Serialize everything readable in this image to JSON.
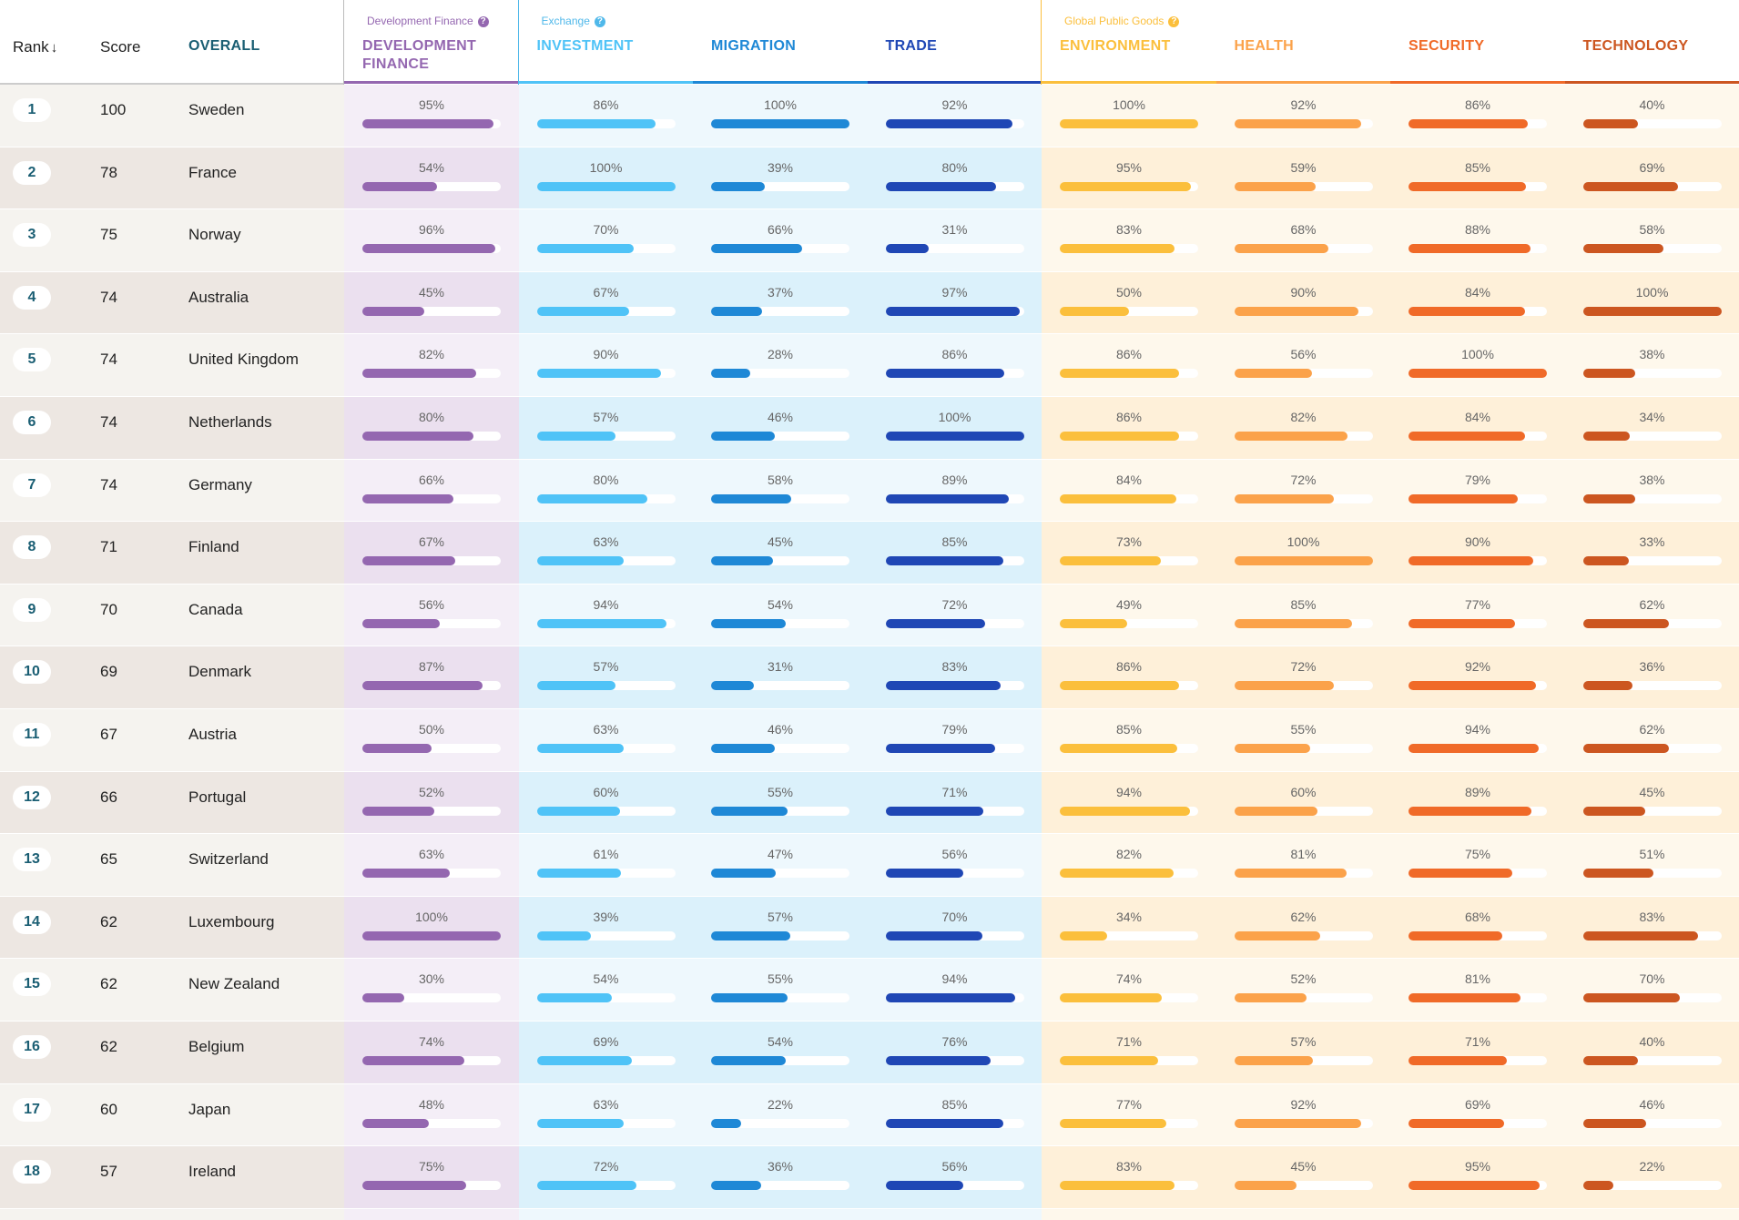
{
  "header": {
    "rank": "Rank",
    "score": "Score",
    "overall": "OVERALL",
    "groups": [
      {
        "label": "Development Finance",
        "color": "#9467b0",
        "columns": [
          {
            "name": "DEVELOPMENT FINANCE",
            "color": "#9467b0"
          }
        ]
      },
      {
        "label": "Exchange",
        "color": "#4fb8ea",
        "columns": [
          {
            "name": "INVESTMENT",
            "color": "#4fc3f7"
          },
          {
            "name": "MIGRATION",
            "color": "#1e88d6"
          },
          {
            "name": "TRADE",
            "color": "#1f47b5"
          }
        ]
      },
      {
        "label": "Global Public Goods",
        "color": "#fbbf3c",
        "columns": [
          {
            "name": "ENVIRONMENT",
            "color": "#fbbf3c"
          },
          {
            "name": "HEALTH",
            "color": "#fba24a"
          },
          {
            "name": "SECURITY",
            "color": "#f06a28"
          },
          {
            "name": "TECHNOLOGY",
            "color": "#cc5620"
          }
        ]
      }
    ]
  },
  "rows": [
    {
      "rank": 1,
      "score": 100,
      "country": "Sweden",
      "values": [
        95,
        86,
        100,
        92,
        100,
        92,
        86,
        40
      ],
      "value_labels": [
        "95%",
        "86%",
        "100%",
        "92%",
        "100%",
        "92%",
        "86%",
        "40%"
      ]
    },
    {
      "rank": 2,
      "score": 78,
      "country": "France",
      "values": [
        54,
        100,
        39,
        80,
        95,
        59,
        85,
        69
      ],
      "value_labels": [
        "54%",
        "100%",
        "39%",
        "80%",
        "95%",
        "59%",
        "85%",
        "69%"
      ]
    },
    {
      "rank": 3,
      "score": 75,
      "country": "Norway",
      "values": [
        96,
        70,
        66,
        31,
        83,
        68,
        88,
        58
      ],
      "value_labels": [
        "96%",
        "70%",
        "66%",
        "31%",
        "83%",
        "68%",
        "88%",
        "58%"
      ]
    },
    {
      "rank": 4,
      "score": 74,
      "country": "Australia",
      "values": [
        45,
        67,
        37,
        97,
        50,
        90,
        84,
        100
      ],
      "value_labels": [
        "45%",
        "67%",
        "37%",
        "97%",
        "50%",
        "90%",
        "84%",
        "100%"
      ]
    },
    {
      "rank": 5,
      "score": 74,
      "country": "United Kingdom",
      "values": [
        82,
        90,
        28,
        86,
        86,
        56,
        100,
        38
      ],
      "value_labels": [
        "82%",
        "90%",
        "28%",
        "86%",
        "86%",
        "56%",
        "100%",
        "38%"
      ]
    },
    {
      "rank": 6,
      "score": 74,
      "country": "Netherlands",
      "values": [
        80,
        57,
        46,
        100,
        86,
        82,
        84,
        34
      ],
      "value_labels": [
        "80%",
        "57%",
        "46%",
        "100%",
        "86%",
        "82%",
        "84%",
        "34%"
      ]
    },
    {
      "rank": 7,
      "score": 74,
      "country": "Germany",
      "values": [
        66,
        80,
        58,
        89,
        84,
        72,
        79,
        38
      ],
      "value_labels": [
        "66%",
        "80%",
        "58%",
        "89%",
        "84%",
        "72%",
        "79%",
        "38%"
      ]
    },
    {
      "rank": 8,
      "score": 71,
      "country": "Finland",
      "values": [
        67,
        63,
        45,
        85,
        73,
        100,
        90,
        33
      ],
      "value_labels": [
        "67%",
        "63%",
        "45%",
        "85%",
        "73%",
        "100%",
        "90%",
        "33%"
      ]
    },
    {
      "rank": 9,
      "score": 70,
      "country": "Canada",
      "values": [
        56,
        94,
        54,
        72,
        49,
        85,
        77,
        62
      ],
      "value_labels": [
        "56%",
        "94%",
        "54%",
        "72%",
        "49%",
        "85%",
        "77%",
        "62%"
      ]
    },
    {
      "rank": 10,
      "score": 69,
      "country": "Denmark",
      "values": [
        87,
        57,
        31,
        83,
        86,
        72,
        92,
        36
      ],
      "value_labels": [
        "87%",
        "57%",
        "31%",
        "83%",
        "86%",
        "72%",
        "92%",
        "36%"
      ]
    },
    {
      "rank": 11,
      "score": 67,
      "country": "Austria",
      "values": [
        50,
        63,
        46,
        79,
        85,
        55,
        94,
        62
      ],
      "value_labels": [
        "50%",
        "63%",
        "46%",
        "79%",
        "85%",
        "55%",
        "94%",
        "62%"
      ]
    },
    {
      "rank": 12,
      "score": 66,
      "country": "Portugal",
      "values": [
        52,
        60,
        55,
        71,
        94,
        60,
        89,
        45
      ],
      "value_labels": [
        "52%",
        "60%",
        "55%",
        "71%",
        "94%",
        "60%",
        "89%",
        "45%"
      ]
    },
    {
      "rank": 13,
      "score": 65,
      "country": "Switzerland",
      "values": [
        63,
        61,
        47,
        56,
        82,
        81,
        75,
        51
      ],
      "value_labels": [
        "63%",
        "61%",
        "47%",
        "56%",
        "82%",
        "81%",
        "75%",
        "51%"
      ]
    },
    {
      "rank": 14,
      "score": 62,
      "country": "Luxembourg",
      "values": [
        100,
        39,
        57,
        70,
        34,
        62,
        68,
        83
      ],
      "value_labels": [
        "100%",
        "39%",
        "57%",
        "70%",
        "34%",
        "62%",
        "68%",
        "83%"
      ]
    },
    {
      "rank": 15,
      "score": 62,
      "country": "New Zealand",
      "values": [
        30,
        54,
        55,
        94,
        74,
        52,
        81,
        70
      ],
      "value_labels": [
        "30%",
        "54%",
        "55%",
        "94%",
        "74%",
        "52%",
        "81%",
        "70%"
      ]
    },
    {
      "rank": 16,
      "score": 62,
      "country": "Belgium",
      "values": [
        74,
        69,
        54,
        76,
        71,
        57,
        71,
        40
      ],
      "value_labels": [
        "74%",
        "69%",
        "54%",
        "76%",
        "71%",
        "57%",
        "71%",
        "40%"
      ]
    },
    {
      "rank": 17,
      "score": 60,
      "country": "Japan",
      "values": [
        48,
        63,
        22,
        85,
        77,
        92,
        69,
        46
      ],
      "value_labels": [
        "48%",
        "63%",
        "22%",
        "85%",
        "77%",
        "92%",
        "69%",
        "46%"
      ]
    },
    {
      "rank": 18,
      "score": 57,
      "country": "Ireland",
      "values": [
        75,
        72,
        36,
        56,
        83,
        45,
        95,
        22
      ],
      "value_labels": [
        "75%",
        "72%",
        "36%",
        "56%",
        "83%",
        "45%",
        "95%",
        "22%"
      ]
    }
  ]
}
